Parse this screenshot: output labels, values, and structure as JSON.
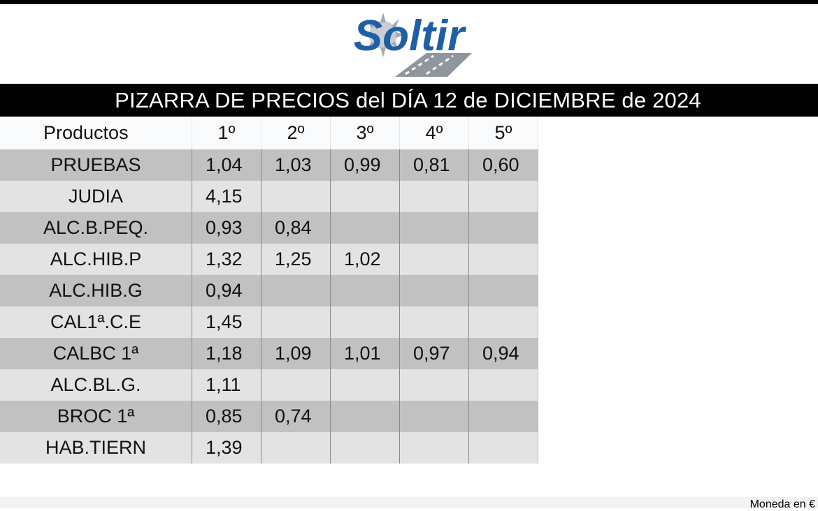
{
  "brand": {
    "logo_text": "Soltir",
    "colors": {
      "blue": "#1f5fa6",
      "gray": "#9aa3ad"
    }
  },
  "header": {
    "title": "PIZARRA DE PRECIOS del DÍA 12 de DICIEMBRE de 2024"
  },
  "table": {
    "columns": [
      "Productos",
      "1º",
      "2º",
      "3º",
      "4º",
      "5º"
    ],
    "rows": [
      {
        "product": "PRUEBAS",
        "prices": [
          "1,04",
          "1,03",
          "0,99",
          "0,81",
          "0,60"
        ]
      },
      {
        "product": "JUDIA",
        "prices": [
          "4,15",
          "",
          "",
          "",
          ""
        ]
      },
      {
        "product": "ALC.B.PEQ.",
        "prices": [
          "0,93",
          "0,84",
          "",
          "",
          ""
        ]
      },
      {
        "product": "ALC.HIB.P",
        "prices": [
          "1,32",
          "1,25",
          "1,02",
          "",
          ""
        ]
      },
      {
        "product": "ALC.HIB.G",
        "prices": [
          "0,94",
          "",
          "",
          "",
          ""
        ]
      },
      {
        "product": "CAL1ª.C.E",
        "prices": [
          "1,45",
          "",
          "",
          "",
          ""
        ]
      },
      {
        "product": "CALBC 1ª",
        "prices": [
          "1,18",
          "1,09",
          "1,01",
          "0,97",
          "0,94"
        ]
      },
      {
        "product": "ALC.BL.G.",
        "prices": [
          "1,11",
          "",
          "",
          "",
          ""
        ]
      },
      {
        "product": "BROC 1ª",
        "prices": [
          "0,85",
          "0,74",
          "",
          "",
          ""
        ]
      },
      {
        "product": "HAB.TIERN",
        "prices": [
          "1,39",
          "",
          "",
          "",
          ""
        ]
      }
    ]
  },
  "footer": {
    "currency_note": "Moneda en €"
  }
}
